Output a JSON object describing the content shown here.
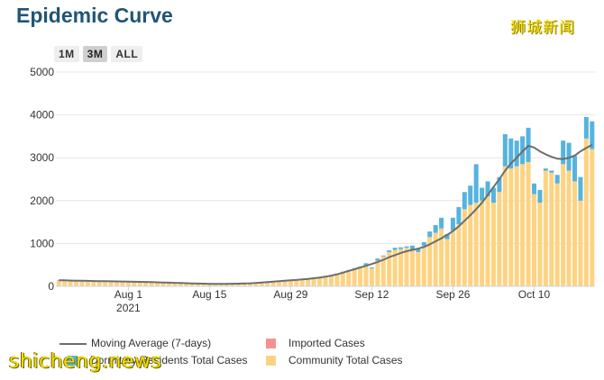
{
  "header": {
    "title": "Epidemic Curve",
    "watermark_top": "狮城新闻",
    "watermark_bottom": "shicheng.news"
  },
  "range_selector": {
    "buttons": [
      {
        "label": "1M",
        "active": false
      },
      {
        "label": "3M",
        "active": true
      },
      {
        "label": "ALL",
        "active": false
      }
    ]
  },
  "colors": {
    "community": "#fdd382",
    "dormitory": "#55b4dd",
    "imported": "#f79090",
    "moving_average": "#6d6d6d",
    "grid": "#e6e6e6",
    "axis_text": "#333333",
    "title": "#1f5577"
  },
  "chart_data": {
    "type": "bar",
    "stacked": true,
    "title": "Epidemic Curve",
    "ylim": [
      0,
      5000
    ],
    "yticks": [
      0,
      1000,
      2000,
      3000,
      4000,
      5000
    ],
    "x_start": "2021-07-20",
    "x_end": "2021-10-20",
    "xticks": [
      {
        "day": 12,
        "label": "Aug 1",
        "sublabel": "2021"
      },
      {
        "day": 26,
        "label": "Aug 15",
        "sublabel": ""
      },
      {
        "day": 40,
        "label": "Aug 29",
        "sublabel": ""
      },
      {
        "day": 54,
        "label": "Sep 12",
        "sublabel": ""
      },
      {
        "day": 68,
        "label": "Sep 26",
        "sublabel": ""
      },
      {
        "day": 82,
        "label": "Oct 10",
        "sublabel": ""
      }
    ],
    "series": [
      {
        "name": "Community Total Cases",
        "key": "community",
        "values": [
          140,
          150,
          150,
          145,
          140,
          135,
          130,
          130,
          125,
          120,
          120,
          115,
          110,
          110,
          105,
          100,
          100,
          95,
          90,
          85,
          80,
          75,
          70,
          65,
          60,
          55,
          50,
          50,
          55,
          60,
          55,
          60,
          65,
          75,
          85,
          95,
          100,
          110,
          120,
          130,
          140,
          150,
          160,
          170,
          185,
          200,
          230,
          260,
          300,
          340,
          380,
          420,
          460,
          480,
          420,
          600,
          700,
          800,
          850,
          870,
          900,
          860,
          800,
          950,
          1150,
          1250,
          1350,
          1100,
          1300,
          1450,
          1800,
          1900,
          1950,
          2000,
          2100,
          1950,
          2200,
          2800,
          2750,
          2800,
          2850,
          2900,
          2150,
          1950,
          2700,
          2650,
          2400,
          2850,
          2700,
          2450,
          2000,
          3450,
          3200
        ]
      },
      {
        "name": "Dormitory Residents Total Cases",
        "key": "dormitory",
        "values": [
          5,
          5,
          5,
          5,
          5,
          5,
          5,
          5,
          5,
          5,
          5,
          5,
          5,
          5,
          5,
          5,
          5,
          5,
          5,
          5,
          5,
          5,
          5,
          5,
          5,
          5,
          5,
          5,
          5,
          5,
          5,
          5,
          5,
          5,
          5,
          5,
          5,
          5,
          5,
          5,
          5,
          5,
          5,
          5,
          5,
          5,
          5,
          5,
          5,
          5,
          5,
          5,
          5,
          60,
          20,
          50,
          20,
          40,
          50,
          40,
          30,
          90,
          70,
          80,
          130,
          180,
          250,
          120,
          300,
          400,
          400,
          450,
          900,
          300,
          350,
          350,
          350,
          750,
          700,
          600,
          650,
          800,
          250,
          300,
          50,
          50,
          200,
          550,
          650,
          600,
          550,
          500,
          650
        ]
      },
      {
        "name": "Imported Cases",
        "key": "imported",
        "values": []
      }
    ],
    "moving_average": {
      "name": "Moving Average (7-days)",
      "values": [
        140,
        140,
        135,
        130,
        130,
        128,
        125,
        122,
        120,
        118,
        116,
        113,
        110,
        108,
        105,
        102,
        98,
        95,
        90,
        86,
        82,
        78,
        74,
        70,
        66,
        62,
        58,
        57,
        57,
        58,
        60,
        63,
        67,
        72,
        80,
        90,
        100,
        110,
        120,
        130,
        140,
        150,
        162,
        175,
        190,
        205,
        225,
        250,
        280,
        320,
        360,
        400,
        440,
        480,
        520,
        570,
        620,
        680,
        730,
        780,
        820,
        850,
        880,
        920,
        980,
        1050,
        1120,
        1200,
        1290,
        1400,
        1530,
        1660,
        1800,
        1950,
        2130,
        2320,
        2500,
        2700,
        2870,
        3000,
        3150,
        3280,
        3240,
        3150,
        3080,
        3020,
        2980,
        2970,
        3000,
        3050,
        3150,
        3230,
        3300
      ]
    }
  },
  "legend": {
    "items": [
      {
        "label": "Moving Average (7-days)",
        "key": "moving_average"
      },
      {
        "label": "Imported Cases",
        "key": "imported"
      },
      {
        "label": "Dormitory Residents Total Cases",
        "key": "dormitory"
      },
      {
        "label": "Community Total Cases",
        "key": "community"
      }
    ]
  }
}
